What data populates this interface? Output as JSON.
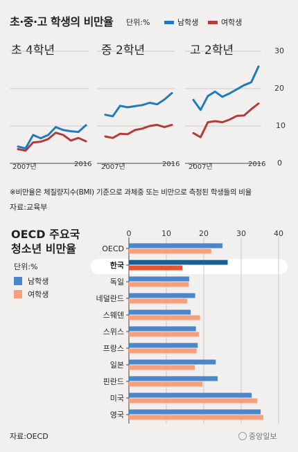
{
  "header": {
    "title": "초·중·고 학생의 비만율",
    "unit": "단위:%",
    "legend_male": "남학생",
    "legend_female": "여학생"
  },
  "colors": {
    "male": "#1f7bbf",
    "female": "#b13c3a",
    "oecd_male": "#4a86c8",
    "oecd_female": "#f4a07a",
    "korea_male": "#1a5f94",
    "korea_female": "#e8532d"
  },
  "note": "※비만율은 체질량지수(BMI) 기준으로 과체중 또는 비만으로 측정된 학생들의 비율",
  "source1": "자료:교육부",
  "source2": "자료:OECD",
  "logo": "중앙일보",
  "chart_data": [
    {
      "type": "line",
      "title": "초 4학년",
      "x": [
        2007,
        2008,
        2009,
        2010,
        2011,
        2012,
        2013,
        2014,
        2015,
        2016
      ],
      "x_tick_labels": [
        "2007년",
        "2016"
      ],
      "ylim": [
        0,
        30
      ],
      "y_ticks": [
        0,
        10,
        20,
        30
      ],
      "series": [
        {
          "name": "남학생",
          "values": [
            4.5,
            4.0,
            7.6,
            6.7,
            7.6,
            9.7,
            8.9,
            8.6,
            8.4,
            10.2
          ]
        },
        {
          "name": "여학생",
          "values": [
            3.8,
            3.4,
            5.6,
            5.8,
            6.5,
            8.2,
            7.6,
            6.1,
            6.8,
            5.9
          ]
        }
      ]
    },
    {
      "type": "line",
      "title": "중 2학년",
      "x": [
        2007,
        2008,
        2009,
        2010,
        2011,
        2012,
        2013,
        2014,
        2015,
        2016
      ],
      "x_tick_labels": [
        "2007년",
        "2016"
      ],
      "ylim": [
        0,
        30
      ],
      "y_ticks": [
        0,
        10,
        20,
        30
      ],
      "series": [
        {
          "name": "남학생",
          "values": [
            13.0,
            12.6,
            15.4,
            15.0,
            15.3,
            15.6,
            16.2,
            15.8,
            17.1,
            18.8
          ]
        },
        {
          "name": "여학생",
          "values": [
            7.2,
            6.8,
            7.9,
            7.8,
            8.9,
            9.3,
            10.0,
            10.3,
            9.7,
            10.3
          ]
        }
      ]
    },
    {
      "type": "line",
      "title": "고 2학년",
      "x": [
        2007,
        2008,
        2009,
        2010,
        2011,
        2012,
        2013,
        2014,
        2015,
        2016
      ],
      "x_tick_labels": [
        "2007년",
        "2016"
      ],
      "ylim": [
        0,
        30
      ],
      "y_ticks": [
        0,
        10,
        20,
        30
      ],
      "series": [
        {
          "name": "남학생",
          "values": [
            17.0,
            14.3,
            18.0,
            19.2,
            17.8,
            18.7,
            19.8,
            20.9,
            21.7,
            25.9
          ]
        },
        {
          "name": "여학생",
          "values": [
            8.1,
            7.0,
            11.0,
            11.3,
            11.0,
            11.7,
            12.7,
            12.8,
            14.5,
            16.0
          ]
        }
      ]
    },
    {
      "type": "bar",
      "orientation": "horizontal",
      "title": "OECD 주요국 청소년 비만율",
      "unit": "단위:%",
      "categories": [
        "OECD",
        "한국",
        "독일",
        "네덜란드",
        "스웨덴",
        "스위스",
        "프랑스",
        "일본",
        "핀란드",
        "미국",
        "영국"
      ],
      "highlight": "한국",
      "xlim": [
        0,
        40
      ],
      "x_ticks": [
        0,
        10,
        20,
        30,
        40
      ],
      "series": [
        {
          "name": "남학생",
          "values": [
            25.0,
            26.4,
            16.1,
            17.7,
            16.5,
            17.9,
            18.4,
            23.2,
            23.7,
            32.8,
            35.2
          ]
        },
        {
          "name": "여학생",
          "values": [
            22.0,
            14.3,
            16.0,
            15.6,
            19.0,
            18.7,
            18.1,
            17.6,
            19.7,
            34.3,
            35.9
          ]
        }
      ]
    }
  ]
}
